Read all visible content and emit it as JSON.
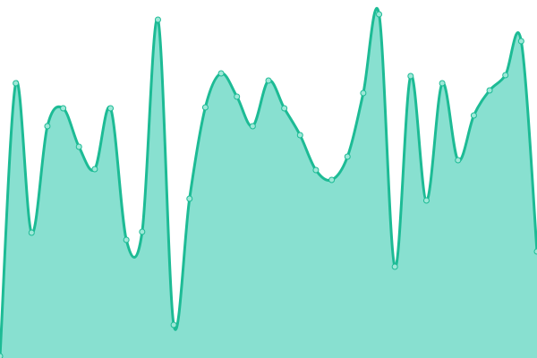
{
  "chart_data": {
    "type": "area",
    "title": "",
    "xlabel": "",
    "ylabel": "",
    "x": [
      0,
      1,
      2,
      3,
      4,
      5,
      6,
      7,
      8,
      9,
      10,
      11,
      12,
      13,
      14,
      15,
      16,
      17,
      18,
      19,
      20,
      21,
      22,
      23,
      24,
      25,
      26,
      27,
      28,
      29,
      30,
      31,
      32,
      33,
      34
    ],
    "series": [
      {
        "values": [
          2,
          307,
          140,
          259,
          279,
          236,
          211,
          279,
          132,
          141,
          378,
          37,
          178,
          280,
          318,
          292,
          259,
          310,
          279,
          249,
          210,
          199,
          225,
          296,
          384,
          102,
          315,
          176,
          307,
          221,
          271,
          299,
          316,
          354,
          119
        ]
      }
    ],
    "ylim": [
      0,
      400
    ],
    "grid": false,
    "axes_visible": false,
    "curve": "smooth",
    "colors": {
      "fill": "#88e0d0",
      "line": "#1dbb95",
      "marker_fill": "#9ee8d8",
      "marker_stroke": "#1dbb95"
    }
  }
}
